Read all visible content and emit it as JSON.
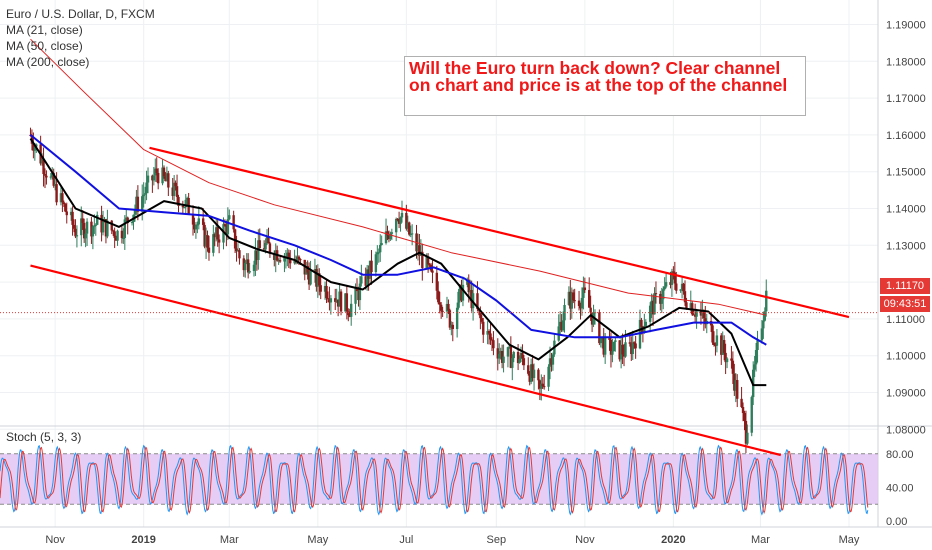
{
  "legend": {
    "symbol": "Euro / U.S. Dollar, D, FXCM",
    "ma21": "MA (21, close)",
    "ma50": "MA (50, close)",
    "ma200": "MA (200, close)"
  },
  "annotation": "Will the Euro turn back down? Clear channel on chart and price is at the top of the channel",
  "price_badge": "1.11170",
  "time_badge": "09:43:51",
  "stoch_label": "Stoch (5, 3, 3)",
  "colors": {
    "ma21": "#000000",
    "ma50": "#1010e0",
    "ma200": "#e02020",
    "channel": "#ff0000",
    "up_candle": "#2e7d5b",
    "down_candle": "#8b1a1a",
    "stoch_k": "#2196f3",
    "stoch_d": "#e53935",
    "stoch_band": "#e1c4f5"
  },
  "chart_data": [
    {
      "type": "candlestick",
      "title": "Euro / U.S. Dollar, D, FXCM",
      "ylim": [
        1.072,
        1.197
      ],
      "y_ticks": [
        "1.19000",
        "1.18000",
        "1.17000",
        "1.16000",
        "1.15000",
        "1.14000",
        "1.13000",
        "1.12000",
        "1.11000",
        "1.10000",
        "1.09000",
        "1.08000"
      ],
      "x_ticks": [
        "Nov",
        "2019",
        "Mar",
        "May",
        "Jul",
        "Sep",
        "Nov",
        "2020",
        "Mar",
        "May"
      ],
      "last_price": 1.1117,
      "close_path": [
        [
          "2018-10-15",
          1.16
        ],
        [
          "2018-11-01",
          1.145
        ],
        [
          "2018-11-15",
          1.134
        ],
        [
          "2018-12-01",
          1.136
        ],
        [
          "2018-12-15",
          1.133
        ],
        [
          "2019-01-01",
          1.144
        ],
        [
          "2019-01-10",
          1.15
        ],
        [
          "2019-02-01",
          1.14
        ],
        [
          "2019-02-15",
          1.13
        ],
        [
          "2019-03-01",
          1.136
        ],
        [
          "2019-03-10",
          1.124
        ],
        [
          "2019-03-25",
          1.13
        ],
        [
          "2019-04-15",
          1.126
        ],
        [
          "2019-05-01",
          1.12
        ],
        [
          "2019-05-23",
          1.113
        ],
        [
          "2019-06-10",
          1.126
        ],
        [
          "2019-06-25",
          1.139
        ],
        [
          "2019-07-15",
          1.124
        ],
        [
          "2019-08-01",
          1.109
        ],
        [
          "2019-08-10",
          1.12
        ],
        [
          "2019-08-25",
          1.106
        ],
        [
          "2019-09-05",
          1.1
        ],
        [
          "2019-09-20",
          1.099
        ],
        [
          "2019-10-01",
          1.09
        ],
        [
          "2019-10-20",
          1.115
        ],
        [
          "2019-11-01",
          1.116
        ],
        [
          "2019-11-15",
          1.102
        ],
        [
          "2019-12-01",
          1.101
        ],
        [
          "2019-12-15",
          1.112
        ],
        [
          "2020-01-01",
          1.121
        ],
        [
          "2020-01-15",
          1.113
        ],
        [
          "2020-02-01",
          1.104
        ],
        [
          "2020-02-10",
          1.097
        ],
        [
          "2020-02-20",
          1.079
        ],
        [
          "2020-02-27",
          1.099
        ],
        [
          "2020-03-05",
          1.117
        ]
      ],
      "series": [
        {
          "name": "MA (21, close)",
          "points": [
            [
              "2018-10-15",
              1.159
            ],
            [
              "2018-11-15",
              1.14
            ],
            [
              "2018-12-15",
              1.135
            ],
            [
              "2019-01-15",
              1.142
            ],
            [
              "2019-02-10",
              1.14
            ],
            [
              "2019-03-01",
              1.132
            ],
            [
              "2019-03-20",
              1.129
            ],
            [
              "2019-04-15",
              1.126
            ],
            [
              "2019-05-10",
              1.12
            ],
            [
              "2019-06-01",
              1.118
            ],
            [
              "2019-06-25",
              1.125
            ],
            [
              "2019-07-10",
              1.128
            ],
            [
              "2019-07-25",
              1.125
            ],
            [
              "2019-08-15",
              1.115
            ],
            [
              "2019-09-10",
              1.103
            ],
            [
              "2019-09-30",
              1.099
            ],
            [
              "2019-10-20",
              1.105
            ],
            [
              "2019-11-05",
              1.111
            ],
            [
              "2019-11-25",
              1.105
            ],
            [
              "2019-12-15",
              1.108
            ],
            [
              "2020-01-05",
              1.113
            ],
            [
              "2020-01-25",
              1.112
            ],
            [
              "2020-02-10",
              1.106
            ],
            [
              "2020-02-25",
              1.092
            ],
            [
              "2020-03-05",
              1.092
            ]
          ]
        },
        {
          "name": "MA (50, close)",
          "points": [
            [
              "2018-10-15",
              1.16
            ],
            [
              "2018-11-15",
              1.15
            ],
            [
              "2018-12-15",
              1.14
            ],
            [
              "2019-01-15",
              1.139
            ],
            [
              "2019-02-15",
              1.138
            ],
            [
              "2019-03-15",
              1.134
            ],
            [
              "2019-04-15",
              1.13
            ],
            [
              "2019-05-10",
              1.126
            ],
            [
              "2019-06-01",
              1.122
            ],
            [
              "2019-06-25",
              1.122
            ],
            [
              "2019-07-20",
              1.124
            ],
            [
              "2019-08-10",
              1.121
            ],
            [
              "2019-09-01",
              1.115
            ],
            [
              "2019-09-25",
              1.107
            ],
            [
              "2019-10-25",
              1.105
            ],
            [
              "2019-11-25",
              1.105
            ],
            [
              "2019-12-20",
              1.107
            ],
            [
              "2020-01-15",
              1.109
            ],
            [
              "2020-02-10",
              1.109
            ],
            [
              "2020-02-25",
              1.105
            ],
            [
              "2020-03-05",
              1.103
            ]
          ]
        },
        {
          "name": "MA (200, close)",
          "points": [
            [
              "2018-10-15",
              1.186
            ],
            [
              "2018-11-20",
              1.172
            ],
            [
              "2019-01-01",
              1.156
            ],
            [
              "2019-02-15",
              1.147
            ],
            [
              "2019-04-01",
              1.141
            ],
            [
              "2019-06-01",
              1.135
            ],
            [
              "2019-08-01",
              1.128
            ],
            [
              "2019-10-01",
              1.123
            ],
            [
              "2019-12-01",
              1.117
            ],
            [
              "2020-02-01",
              1.114
            ],
            [
              "2020-03-05",
              1.111
            ]
          ]
        }
      ],
      "channel_upper": [
        [
          "2019-01-05",
          1.1565
        ],
        [
          "2020-05-01",
          1.1105
        ]
      ],
      "channel_lower": [
        [
          "2018-10-15",
          1.1245
        ],
        [
          "2020-03-15",
          1.073
        ]
      ]
    },
    {
      "type": "line",
      "title": "Stoch (5, 3, 3)",
      "ylim": [
        0,
        100
      ],
      "y_ticks": [
        "80.00",
        "40.00",
        "0.00"
      ],
      "bands": [
        20,
        80
      ],
      "series": [
        {
          "name": "%K",
          "period_days": 12,
          "low": 8,
          "high": 90
        },
        {
          "name": "%D",
          "lag_days": 1.5,
          "low": 10,
          "high": 88
        }
      ]
    }
  ]
}
